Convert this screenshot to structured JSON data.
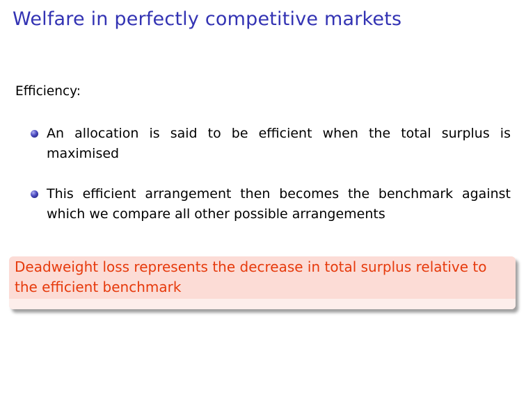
{
  "slide": {
    "title": "Welfare in perfectly competitive markets",
    "section_label": "Efficiency:",
    "bullets": [
      "An allocation is said to be efficient when the total surplus is maximised",
      "This efficient arrangement then becomes the benchmark against which we compare all other possible arrangements"
    ],
    "alert": "Deadweight loss represents the decrease in total surplus relative to the efficient benchmark"
  },
  "colors": {
    "title": "#3333b3",
    "alert_text": "#e63a0c",
    "alert_background": "#fcdcd6"
  }
}
